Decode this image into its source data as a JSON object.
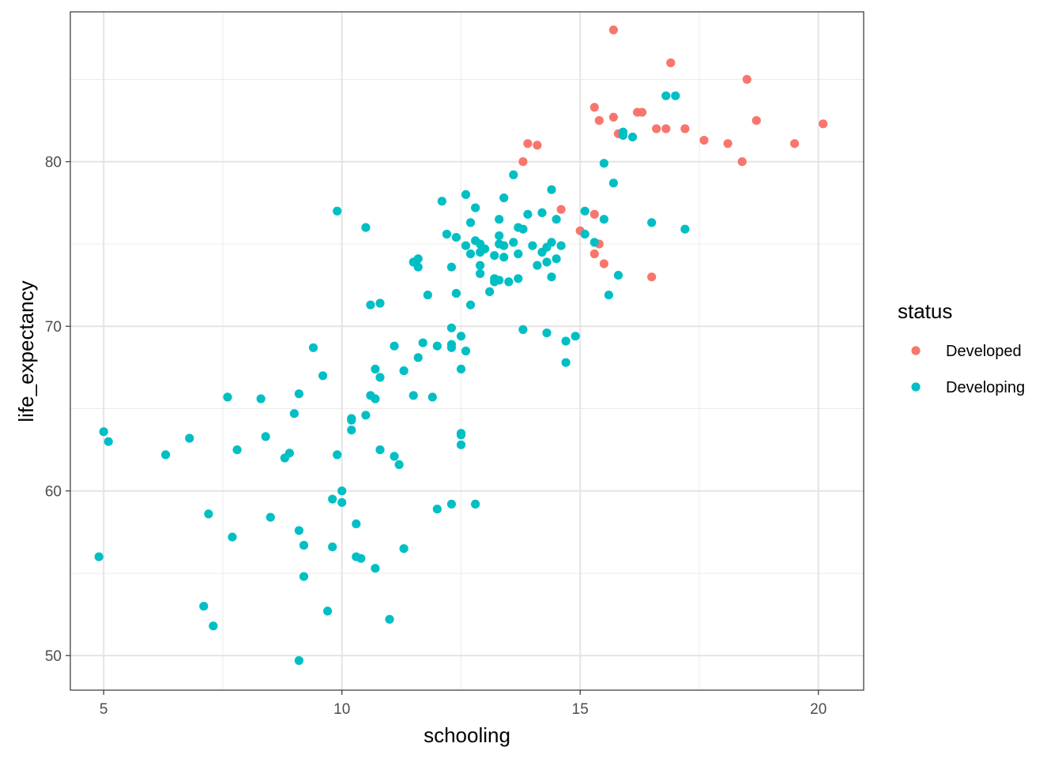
{
  "chart_data": {
    "type": "scatter",
    "title": "",
    "xlabel": "schooling",
    "ylabel": "life_expectancy",
    "xlim": [
      4.3,
      20.95
    ],
    "ylim": [
      47.9,
      89.1
    ],
    "x_ticks": [
      5,
      10,
      15,
      20
    ],
    "y_ticks": [
      50,
      60,
      70,
      80
    ],
    "x_minor_ticks": [
      7.5,
      12.5,
      17.5
    ],
    "y_minor_ticks": [
      55,
      65,
      75,
      85
    ],
    "grid": true,
    "legend": {
      "title": "status",
      "position": "right"
    },
    "series": [
      {
        "name": "Developed",
        "color": "#F8766D",
        "points": [
          [
            15.7,
            88.0
          ],
          [
            16.9,
            86.0
          ],
          [
            18.5,
            85.0
          ],
          [
            15.3,
            83.3
          ],
          [
            16.2,
            83.0
          ],
          [
            16.3,
            83.0
          ],
          [
            15.4,
            82.5
          ],
          [
            15.7,
            82.7
          ],
          [
            18.7,
            82.5
          ],
          [
            20.1,
            82.3
          ],
          [
            16.6,
            82.0
          ],
          [
            16.8,
            82.0
          ],
          [
            17.2,
            82.0
          ],
          [
            15.8,
            81.7
          ],
          [
            17.6,
            81.3
          ],
          [
            18.1,
            81.1
          ],
          [
            19.5,
            81.1
          ],
          [
            13.9,
            81.1
          ],
          [
            14.1,
            81.0
          ],
          [
            13.8,
            80.0
          ],
          [
            18.4,
            80.0
          ],
          [
            14.6,
            77.1
          ],
          [
            15.3,
            76.8
          ],
          [
            15.0,
            75.8
          ],
          [
            15.4,
            75.0
          ],
          [
            15.3,
            74.4
          ],
          [
            15.5,
            73.8
          ],
          [
            16.5,
            73.0
          ]
        ]
      },
      {
        "name": "Developing",
        "color": "#00BFC4",
        "points": [
          [
            16.8,
            84.0
          ],
          [
            17.0,
            84.0
          ],
          [
            15.9,
            81.8
          ],
          [
            16.1,
            81.5
          ],
          [
            15.9,
            81.6
          ],
          [
            13.6,
            79.2
          ],
          [
            15.5,
            79.9
          ],
          [
            15.7,
            78.7
          ],
          [
            14.4,
            78.3
          ],
          [
            12.1,
            77.6
          ],
          [
            12.6,
            78.0
          ],
          [
            12.8,
            77.2
          ],
          [
            13.4,
            77.8
          ],
          [
            9.9,
            77.0
          ],
          [
            13.9,
            76.8
          ],
          [
            14.2,
            76.9
          ],
          [
            15.1,
            77.0
          ],
          [
            10.5,
            76.0
          ],
          [
            12.7,
            76.3
          ],
          [
            13.3,
            76.5
          ],
          [
            13.7,
            76.0
          ],
          [
            13.8,
            75.9
          ],
          [
            14.5,
            76.5
          ],
          [
            15.5,
            76.5
          ],
          [
            16.5,
            76.3
          ],
          [
            17.2,
            75.9
          ],
          [
            12.2,
            75.6
          ],
          [
            12.4,
            75.4
          ],
          [
            12.8,
            75.2
          ],
          [
            12.9,
            75.0
          ],
          [
            13.3,
            75.5
          ],
          [
            13.4,
            74.9
          ],
          [
            13.6,
            75.1
          ],
          [
            12.6,
            74.9
          ],
          [
            12.7,
            74.4
          ],
          [
            12.9,
            74.5
          ],
          [
            13.0,
            74.7
          ],
          [
            13.2,
            74.3
          ],
          [
            13.3,
            75.0
          ],
          [
            13.4,
            74.2
          ],
          [
            13.7,
            74.4
          ],
          [
            14.0,
            74.9
          ],
          [
            14.2,
            74.5
          ],
          [
            14.3,
            74.8
          ],
          [
            14.4,
            75.1
          ],
          [
            14.6,
            74.9
          ],
          [
            15.1,
            75.6
          ],
          [
            15.3,
            75.1
          ],
          [
            14.1,
            73.7
          ],
          [
            14.3,
            73.9
          ],
          [
            14.5,
            74.1
          ],
          [
            12.9,
            73.7
          ],
          [
            12.9,
            73.2
          ],
          [
            13.2,
            72.9
          ],
          [
            13.3,
            72.8
          ],
          [
            13.5,
            72.7
          ],
          [
            13.7,
            72.9
          ],
          [
            13.2,
            72.7
          ],
          [
            14.4,
            73.0
          ],
          [
            15.8,
            73.1
          ],
          [
            12.3,
            73.6
          ],
          [
            11.6,
            74.1
          ],
          [
            11.6,
            73.6
          ],
          [
            11.5,
            73.9
          ],
          [
            11.8,
            71.9
          ],
          [
            12.4,
            72.0
          ],
          [
            13.1,
            72.1
          ],
          [
            12.7,
            71.3
          ],
          [
            15.6,
            71.9
          ],
          [
            10.6,
            71.3
          ],
          [
            10.8,
            71.4
          ],
          [
            12.3,
            69.9
          ],
          [
            13.8,
            69.8
          ],
          [
            14.3,
            69.6
          ],
          [
            14.7,
            69.1
          ],
          [
            14.9,
            69.4
          ],
          [
            12.5,
            69.4
          ],
          [
            11.7,
            69.0
          ],
          [
            12.0,
            68.8
          ],
          [
            12.3,
            68.9
          ],
          [
            12.3,
            68.7
          ],
          [
            12.6,
            68.5
          ],
          [
            11.1,
            68.8
          ],
          [
            9.4,
            68.7
          ],
          [
            11.6,
            68.1
          ],
          [
            12.5,
            67.4
          ],
          [
            14.7,
            67.8
          ],
          [
            11.3,
            67.3
          ],
          [
            10.7,
            67.4
          ],
          [
            10.8,
            66.9
          ],
          [
            9.6,
            67.0
          ],
          [
            11.5,
            65.8
          ],
          [
            11.9,
            65.7
          ],
          [
            10.6,
            65.8
          ],
          [
            10.7,
            65.6
          ],
          [
            9.1,
            65.9
          ],
          [
            8.3,
            65.6
          ],
          [
            7.6,
            65.7
          ],
          [
            9.0,
            64.7
          ],
          [
            10.5,
            64.6
          ],
          [
            10.2,
            64.4
          ],
          [
            10.2,
            64.3
          ],
          [
            10.2,
            63.7
          ],
          [
            12.5,
            63.5
          ],
          [
            12.5,
            63.4
          ],
          [
            12.5,
            62.8
          ],
          [
            8.4,
            63.3
          ],
          [
            6.8,
            63.2
          ],
          [
            5.0,
            63.6
          ],
          [
            5.1,
            63.0
          ],
          [
            6.3,
            62.2
          ],
          [
            7.8,
            62.5
          ],
          [
            8.9,
            62.3
          ],
          [
            8.8,
            62.0
          ],
          [
            9.9,
            62.2
          ],
          [
            10.8,
            62.5
          ],
          [
            11.1,
            62.1
          ],
          [
            11.2,
            61.6
          ],
          [
            10.0,
            60.0
          ],
          [
            9.8,
            59.5
          ],
          [
            10.0,
            59.3
          ],
          [
            12.0,
            58.9
          ],
          [
            12.3,
            59.2
          ],
          [
            12.8,
            59.2
          ],
          [
            7.2,
            58.6
          ],
          [
            8.5,
            58.4
          ],
          [
            10.3,
            58.0
          ],
          [
            9.1,
            57.6
          ],
          [
            7.7,
            57.2
          ],
          [
            9.2,
            56.7
          ],
          [
            9.8,
            56.6
          ],
          [
            11.3,
            56.5
          ],
          [
            4.9,
            56.0
          ],
          [
            10.3,
            56.0
          ],
          [
            10.4,
            55.9
          ],
          [
            10.7,
            55.3
          ],
          [
            9.2,
            54.8
          ],
          [
            7.1,
            53.0
          ],
          [
            9.7,
            52.7
          ],
          [
            7.3,
            51.8
          ],
          [
            11.0,
            52.2
          ],
          [
            9.1,
            49.7
          ]
        ]
      }
    ]
  }
}
